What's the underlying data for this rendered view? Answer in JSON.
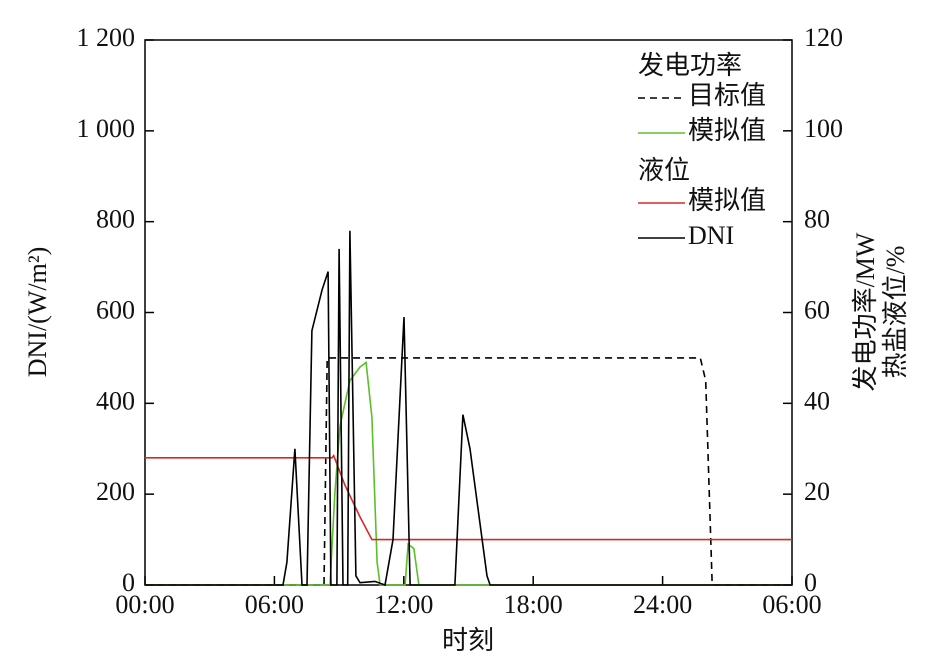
{
  "chart_data": {
    "type": "line",
    "xlabel": "时刻",
    "ylabel": "DNI/(W/m²)",
    "y2label": [
      "发电功率/MW",
      "热盐液位/%"
    ],
    "xlim": [
      0,
      30
    ],
    "xticks": [
      {
        "value": 0,
        "label": "00:00"
      },
      {
        "value": 6,
        "label": "06:00"
      },
      {
        "value": 12,
        "label": "12:00"
      },
      {
        "value": 18,
        "label": "18:00"
      },
      {
        "value": 24,
        "label": "24:00"
      },
      {
        "value": 30,
        "label": "06:00"
      }
    ],
    "ylim": [
      0,
      1200
    ],
    "yticks": [
      0,
      200,
      400,
      600,
      800,
      {
        "value": 1000,
        "label": "1 000"
      },
      {
        "value": 1200,
        "label": "1 200"
      }
    ],
    "y2lim": [
      0,
      120
    ],
    "y2ticks": [
      0,
      20,
      40,
      60,
      80,
      100,
      120
    ],
    "legend_groups": [
      {
        "title": "发电功率",
        "series": [
          0,
          1
        ]
      },
      {
        "title": "液位",
        "series": [
          2,
          3
        ]
      }
    ],
    "series": [
      {
        "name": "目标值",
        "color": "#000000",
        "dash": true,
        "axis": "y2",
        "x": [
          0,
          8.3,
          8.45,
          25.75,
          26.0,
          26.3,
          30
        ],
        "values": [
          0,
          0,
          50,
          50,
          45,
          0,
          0
        ]
      },
      {
        "name": "模拟值",
        "color": "#5cbf2a",
        "axis": "y2",
        "x": [
          0,
          8.58,
          8.8,
          9.04,
          9.5,
          9.97,
          10.25,
          10.52,
          10.76,
          10.9,
          12.06,
          12.2,
          12.47,
          12.7,
          30
        ],
        "values": [
          0,
          0,
          20,
          35,
          45,
          48,
          49,
          37,
          5,
          0,
          0,
          9,
          8,
          0,
          0
        ]
      },
      {
        "name": "模拟值",
        "color": "#d42a2a",
        "axis": "y2",
        "x": [
          0,
          8.67,
          8.75,
          9.27,
          9.97,
          10.52,
          30
        ],
        "values": [
          28,
          28,
          28.5,
          22,
          15,
          10,
          10
        ]
      },
      {
        "name": "DNI",
        "color": "#000000",
        "x": [
          0,
          6.4,
          6.58,
          6.95,
          7.28,
          7.51,
          7.74,
          8.21,
          8.49,
          8.62,
          8.9,
          9.0,
          9.18,
          9.4,
          9.5,
          9.78,
          9.97,
          10.66,
          11.13,
          11.5,
          12.01,
          12.29,
          14.37,
          14.74,
          15.07,
          15.86,
          16.0,
          30
        ],
        "values": [
          0,
          0,
          50,
          300,
          0,
          0,
          560,
          650,
          690,
          0,
          0,
          740,
          0,
          0,
          780,
          20,
          5,
          8,
          0,
          100,
          590,
          0,
          0,
          375,
          300,
          20,
          0,
          0
        ]
      }
    ]
  }
}
